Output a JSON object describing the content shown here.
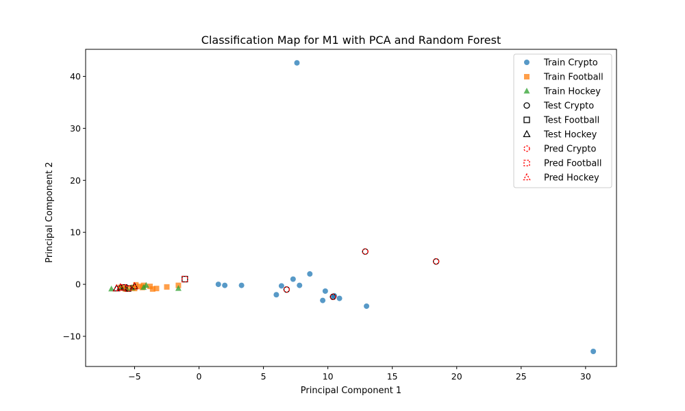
{
  "chart_data": {
    "type": "scatter",
    "title": "Classification Map for M1 with PCA and Random Forest",
    "xlabel": "Principal Component 1",
    "ylabel": "Principal Component 2",
    "xlim": [
      -8.8,
      32.4
    ],
    "ylim": [
      -15.8,
      45.2
    ],
    "xticks": [
      -5,
      0,
      5,
      10,
      15,
      20,
      25,
      30
    ],
    "yticks": [
      -10,
      0,
      10,
      20,
      30,
      40
    ],
    "grid": false,
    "legend_position": "top-right",
    "series": [
      {
        "name": "Train Crypto",
        "marker": "circle",
        "style": "filled",
        "color": "#1f77b4",
        "points": [
          [
            7.6,
            42.6
          ],
          [
            30.6,
            -12.9
          ],
          [
            8.6,
            2.0
          ],
          [
            7.3,
            1.0
          ],
          [
            1.5,
            0.0
          ],
          [
            2.0,
            -0.2
          ],
          [
            3.3,
            -0.2
          ],
          [
            6.4,
            -0.3
          ],
          [
            7.8,
            -0.2
          ],
          [
            6.0,
            -2.0
          ],
          [
            9.8,
            -1.3
          ],
          [
            10.5,
            -2.2
          ],
          [
            10.9,
            -2.7
          ],
          [
            9.6,
            -3.1
          ],
          [
            13.0,
            -4.2
          ],
          [
            10.4,
            -2.5
          ]
        ]
      },
      {
        "name": "Train Football",
        "marker": "square",
        "style": "filled",
        "color": "#ff7f0e",
        "points": [
          [
            -1.6,
            -0.2
          ],
          [
            -2.5,
            -0.5
          ],
          [
            -3.3,
            -0.8
          ],
          [
            -3.6,
            -0.9
          ],
          [
            -3.8,
            -0.4
          ],
          [
            -4.3,
            -0.2
          ],
          [
            -4.6,
            -0.4
          ],
          [
            -4.9,
            -0.1
          ],
          [
            -5.1,
            -0.6
          ],
          [
            -5.4,
            -0.7
          ],
          [
            -5.7,
            -0.9
          ],
          [
            -5.9,
            -0.7
          ],
          [
            -6.1,
            -0.6
          ],
          [
            -5.0,
            -0.8
          ],
          [
            -4.4,
            -0.6
          ]
        ]
      },
      {
        "name": "Train Hockey",
        "marker": "triangle",
        "style": "filled",
        "color": "#2ca02c",
        "points": [
          [
            -6.8,
            -0.9
          ],
          [
            -1.6,
            -0.8
          ],
          [
            -4.1,
            -0.2
          ],
          [
            -4.3,
            -0.6
          ],
          [
            -6.0,
            -0.6
          ],
          [
            -5.6,
            -0.9
          ],
          [
            -5.2,
            -0.7
          ]
        ]
      },
      {
        "name": "Test Crypto",
        "marker": "circle",
        "style": "hollow",
        "color": "#000000",
        "points": [
          [
            12.9,
            6.3
          ],
          [
            18.4,
            4.4
          ],
          [
            6.8,
            -1.0
          ],
          [
            10.4,
            -2.4
          ]
        ]
      },
      {
        "name": "Test Football",
        "marker": "square",
        "style": "hollow",
        "color": "#000000",
        "points": [
          [
            -1.1,
            1.0
          ],
          [
            -5.5,
            -0.8
          ],
          [
            -5.8,
            -0.6
          ]
        ]
      },
      {
        "name": "Test Hockey",
        "marker": "triangle",
        "style": "hollow",
        "color": "#000000",
        "points": [
          [
            -6.4,
            -0.8
          ],
          [
            -5.0,
            -0.4
          ],
          [
            -6.1,
            -0.6
          ]
        ]
      },
      {
        "name": "Pred Crypto",
        "marker": "circle",
        "style": "dashed",
        "color": "#ff0000",
        "points": [
          [
            12.9,
            6.3
          ],
          [
            18.4,
            4.4
          ],
          [
            6.8,
            -1.0
          ],
          [
            10.4,
            -2.4
          ]
        ]
      },
      {
        "name": "Pred Football",
        "marker": "square",
        "style": "dashed",
        "color": "#ff0000",
        "points": [
          [
            -1.1,
            1.0
          ],
          [
            -5.5,
            -0.8
          ],
          [
            -5.8,
            -0.6
          ]
        ]
      },
      {
        "name": "Pred Hockey",
        "marker": "triangle",
        "style": "dashed",
        "color": "#ff0000",
        "points": [
          [
            -6.4,
            -0.8
          ],
          [
            -5.0,
            -0.4
          ],
          [
            -6.1,
            -0.6
          ]
        ]
      }
    ]
  }
}
